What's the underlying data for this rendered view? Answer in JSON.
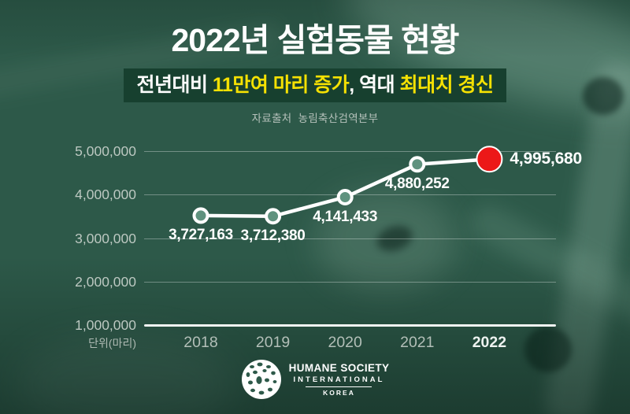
{
  "header": {
    "title": "2022년 실험동물 현황",
    "subtitle_parts": [
      {
        "text": "전년대비 ",
        "emphasis": false
      },
      {
        "text": "11만여 마리 증가",
        "emphasis": true
      },
      {
        "text": ", 역대 ",
        "emphasis": false
      },
      {
        "text": "최대치 경신",
        "emphasis": true
      }
    ],
    "source": "자료출처  농림축산검역본부"
  },
  "chart_data": {
    "type": "line",
    "title": "2022년 실험동물 현황",
    "categories": [
      "2018",
      "2019",
      "2020",
      "2021",
      "2022"
    ],
    "values": [
      3727163,
      3712380,
      4141433,
      4880252,
      4995680
    ],
    "value_labels": [
      "3,727,163",
      "3,712,380",
      "4,141,433",
      "4,880,252",
      "4,995,680"
    ],
    "y_ticks": [
      5000000,
      4000000,
      3000000,
      2000000,
      1000000
    ],
    "y_tick_labels": [
      "5,000,000",
      "4,000,000",
      "3,000,000",
      "2,000,000",
      "1,000,000"
    ],
    "ylim": [
      1000000,
      5000000
    ],
    "unit_label": "단위(마리)",
    "grid": true,
    "legend": "none",
    "highlight_index": 4
  },
  "footer": {
    "logo_line1": "HUMANE SOCIETY",
    "logo_line2": "INTERNATIONAL",
    "logo_line3": "KOREA"
  },
  "colors": {
    "background_green": "#2d5949",
    "banner_background": "#17402f",
    "accent_yellow": "#f5e103",
    "highlight_red": "#ec1818",
    "line_white": "#ffffff",
    "marker_fill": "#5f927e",
    "tick_text": "#bcc8c1",
    "muted_text": "#b3bfb8"
  }
}
